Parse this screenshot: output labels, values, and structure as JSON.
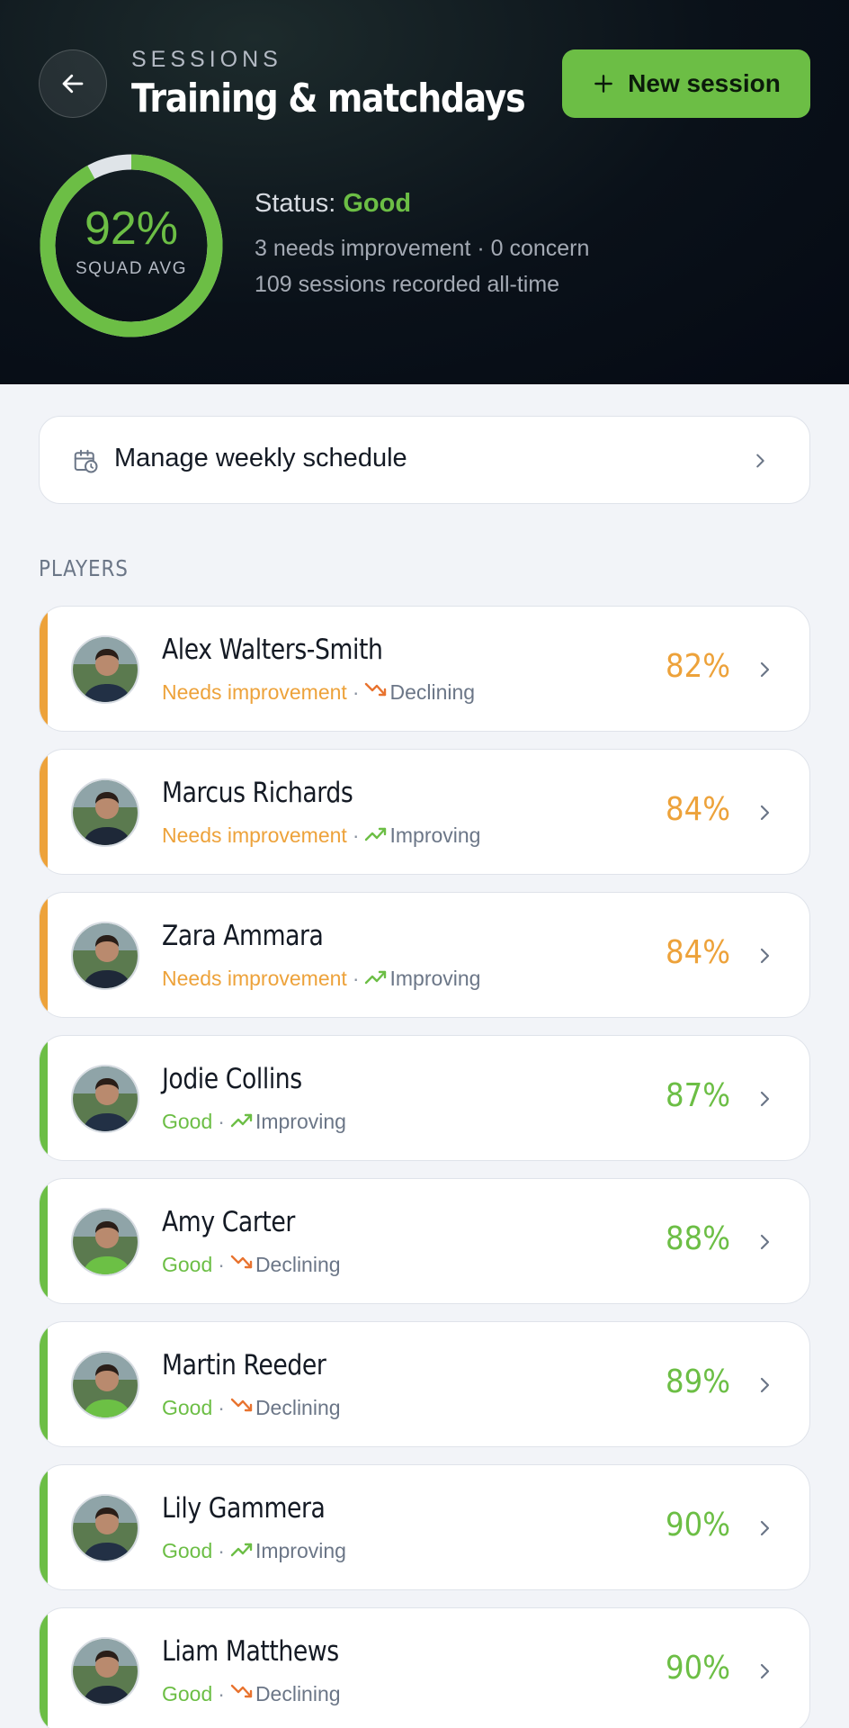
{
  "header": {
    "eyebrow": "SESSIONS",
    "title": "Training & matchdays",
    "new_button": "New session",
    "ring": {
      "value_label": "92%",
      "value": 0.92,
      "label": "SQUAD AVG"
    },
    "status_prefix": "Status: ",
    "status_value": "Good",
    "summary_line": "3 needs improvement · 0 concern",
    "sessions_line": "109 sessions recorded all-time"
  },
  "schedule": {
    "label": "Manage weekly schedule"
  },
  "players_section": {
    "label": "PLAYERS"
  },
  "colors": {
    "good": "#6cbe45",
    "needs_improvement": "#eda23a",
    "declining": "#e8732f",
    "improving": "#6cbe45"
  },
  "players": [
    {
      "name": "Alex Walters-Smith",
      "status": "Needs improvement",
      "dot": "·",
      "trend": "Declining",
      "percent": "82%"
    },
    {
      "name": "Marcus Richards",
      "status": "Needs improvement",
      "dot": "·",
      "trend": "Improving",
      "percent": "84%"
    },
    {
      "name": "Zara Ammara",
      "status": "Needs improvement",
      "dot": "·",
      "trend": "Improving",
      "percent": "84%"
    },
    {
      "name": "Jodie Collins",
      "status": "Good",
      "dot": "·",
      "trend": "Improving",
      "percent": "87%"
    },
    {
      "name": "Amy Carter",
      "status": "Good",
      "dot": "·",
      "trend": "Declining",
      "percent": "88%"
    },
    {
      "name": "Martin Reeder",
      "status": "Good",
      "dot": "·",
      "trend": "Declining",
      "percent": "89%"
    },
    {
      "name": "Lily Gammera",
      "status": "Good",
      "dot": "·",
      "trend": "Improving",
      "percent": "90%"
    },
    {
      "name": "Liam Matthews",
      "status": "Good",
      "dot": "·",
      "trend": "Declining",
      "percent": "90%"
    }
  ]
}
